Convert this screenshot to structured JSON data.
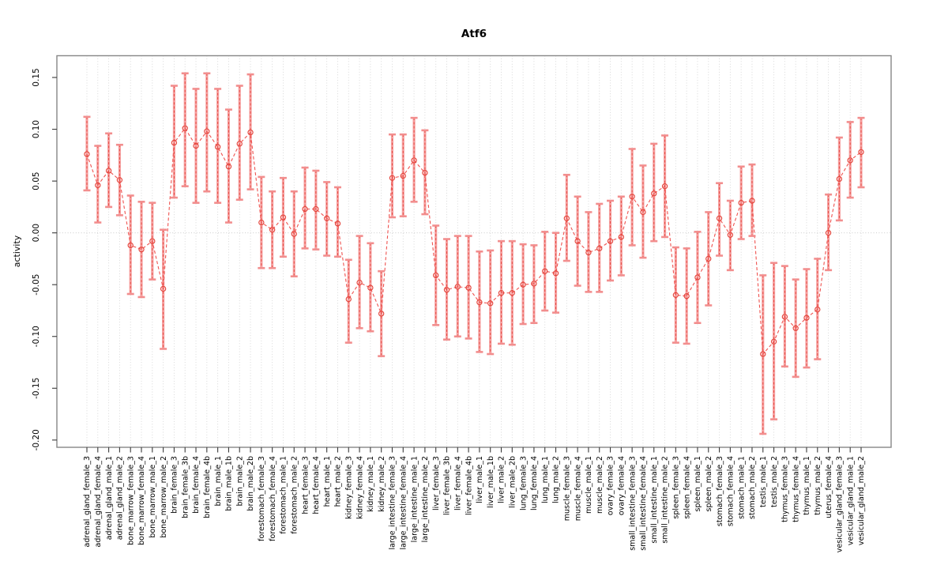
{
  "chart_data": {
    "type": "line",
    "title": "Atf6",
    "xlabel": "",
    "ylabel": "activity",
    "legend": "none",
    "grid": "vertical dotted gridline at every category; horizontal dotted line at y=0",
    "point_style": "open-circle with vertical error bars (dashed red over solid pink) and pink caps",
    "line_style": "dashed",
    "ylim": [
      -0.207,
      0.171
    ],
    "yticks": [
      -0.2,
      -0.15,
      -0.1,
      -0.05,
      0.0,
      0.05,
      0.1,
      0.15
    ],
    "colors": {
      "point": "#e4453c",
      "connector": "#ef5350",
      "errorbar_solid": "#f6a2a2",
      "errorbar_dash": "#e4453c",
      "errorbar_cap": "#f28e8e",
      "gridline": "#d4d4d4",
      "zero_line": "#c4c4c4",
      "box": "#878787",
      "tick": "#3a3a3a",
      "text": "#000000"
    },
    "categories": [
      "adrenal_gland_female_3",
      "adrenal_gland_female_4",
      "adrenal_gland_male_1",
      "adrenal_gland_male_2",
      "bone_marrow_female_3",
      "bone_marrow_female_4",
      "bone_marrow_male_1",
      "bone_marrow_male_2",
      "brain_female_3",
      "brain_female_3b",
      "brain_female_4",
      "brain_female_4b",
      "brain_male_1",
      "brain_male_1b",
      "brain_male_2",
      "brain_male_2b",
      "forestomach_female_3",
      "forestomach_female_4",
      "forestomach_male_1",
      "forestomach_male_2",
      "heart_female_3",
      "heart_female_4",
      "heart_male_1",
      "heart_male_2",
      "kidney_female_3",
      "kidney_female_4",
      "kidney_male_1",
      "kidney_male_2",
      "large_intestine_female_3",
      "large_intestine_female_4",
      "large_intestine_male_1",
      "large_intestine_male_2",
      "liver_female_3",
      "liver_female_3b",
      "liver_female_4",
      "liver_female_4b",
      "liver_male_1",
      "liver_male_1b",
      "liver_male_2",
      "liver_male_2b",
      "lung_female_3",
      "lung_female_4",
      "lung_male_1",
      "lung_male_2",
      "muscle_female_3",
      "muscle_female_4",
      "muscle_male_1",
      "muscle_male_2",
      "ovary_female_3",
      "ovary_female_4",
      "small_intestine_female_3",
      "small_intestine_female_4",
      "small_intestine_male_1",
      "small_intestine_male_2",
      "spleen_female_3",
      "spleen_female_4",
      "spleen_male_1",
      "spleen_male_2",
      "stomach_female_3",
      "stomach_female_4",
      "stomach_male_1",
      "stomach_male_2",
      "testis_male_1",
      "testis_male_2",
      "thymus_female_3",
      "thymus_female_4",
      "thymus_male_1",
      "thymus_male_2",
      "uterus_female_4",
      "vesicular_gland_female_3",
      "vesicular_gland_male_1",
      "vesicular_gland_male_2"
    ],
    "series": [
      {
        "name": "activity",
        "values": [
          0.076,
          0.046,
          0.06,
          0.051,
          -0.012,
          -0.016,
          -0.008,
          -0.054,
          0.087,
          0.101,
          0.084,
          0.098,
          0.083,
          0.064,
          0.086,
          0.097,
          0.01,
          0.003,
          0.015,
          -0.001,
          0.023,
          0.023,
          0.014,
          0.009,
          -0.064,
          -0.048,
          -0.053,
          -0.078,
          0.053,
          0.055,
          0.07,
          0.058,
          -0.041,
          -0.055,
          -0.052,
          -0.053,
          -0.067,
          -0.068,
          -0.058,
          -0.058,
          -0.05,
          -0.049,
          -0.037,
          -0.039,
          0.014,
          -0.008,
          -0.019,
          -0.015,
          -0.008,
          -0.004,
          0.035,
          0.02,
          0.038,
          0.045,
          -0.06,
          -0.061,
          -0.043,
          -0.025,
          0.014,
          -0.002,
          0.029,
          0.031,
          -0.117,
          -0.105,
          -0.081,
          -0.092,
          -0.082,
          -0.074,
          0.0,
          0.052,
          0.07,
          0.078
        ],
        "lower": [
          0.041,
          0.01,
          0.025,
          0.017,
          -0.059,
          -0.062,
          -0.045,
          -0.112,
          0.034,
          0.045,
          0.029,
          0.04,
          0.029,
          0.01,
          0.032,
          0.042,
          -0.034,
          -0.034,
          -0.023,
          -0.042,
          -0.015,
          -0.016,
          -0.022,
          -0.023,
          -0.106,
          -0.092,
          -0.095,
          -0.119,
          0.015,
          0.016,
          0.03,
          0.018,
          -0.089,
          -0.103,
          -0.1,
          -0.102,
          -0.115,
          -0.117,
          -0.107,
          -0.108,
          -0.088,
          -0.087,
          -0.075,
          -0.077,
          -0.027,
          -0.051,
          -0.057,
          -0.057,
          -0.046,
          -0.041,
          -0.012,
          -0.024,
          -0.008,
          -0.004,
          -0.106,
          -0.107,
          -0.087,
          -0.07,
          -0.022,
          -0.036,
          -0.006,
          -0.003,
          -0.194,
          -0.18,
          -0.129,
          -0.139,
          -0.13,
          -0.122,
          -0.036,
          0.012,
          0.034,
          0.044
        ],
        "upper": [
          0.112,
          0.084,
          0.096,
          0.085,
          0.036,
          0.03,
          0.029,
          0.003,
          0.142,
          0.154,
          0.139,
          0.154,
          0.139,
          0.119,
          0.142,
          0.153,
          0.054,
          0.04,
          0.053,
          0.04,
          0.063,
          0.06,
          0.049,
          0.044,
          -0.026,
          -0.003,
          -0.01,
          -0.037,
          0.095,
          0.095,
          0.111,
          0.099,
          0.007,
          -0.006,
          -0.003,
          -0.003,
          -0.018,
          -0.017,
          -0.008,
          -0.008,
          -0.011,
          -0.012,
          0.001,
          0.0,
          0.056,
          0.035,
          0.02,
          0.028,
          0.031,
          0.035,
          0.081,
          0.065,
          0.086,
          0.094,
          -0.014,
          -0.015,
          0.001,
          0.02,
          0.048,
          0.031,
          0.064,
          0.066,
          -0.041,
          -0.029,
          -0.032,
          -0.045,
          -0.035,
          -0.025,
          0.037,
          0.092,
          0.107,
          0.111
        ]
      }
    ]
  }
}
